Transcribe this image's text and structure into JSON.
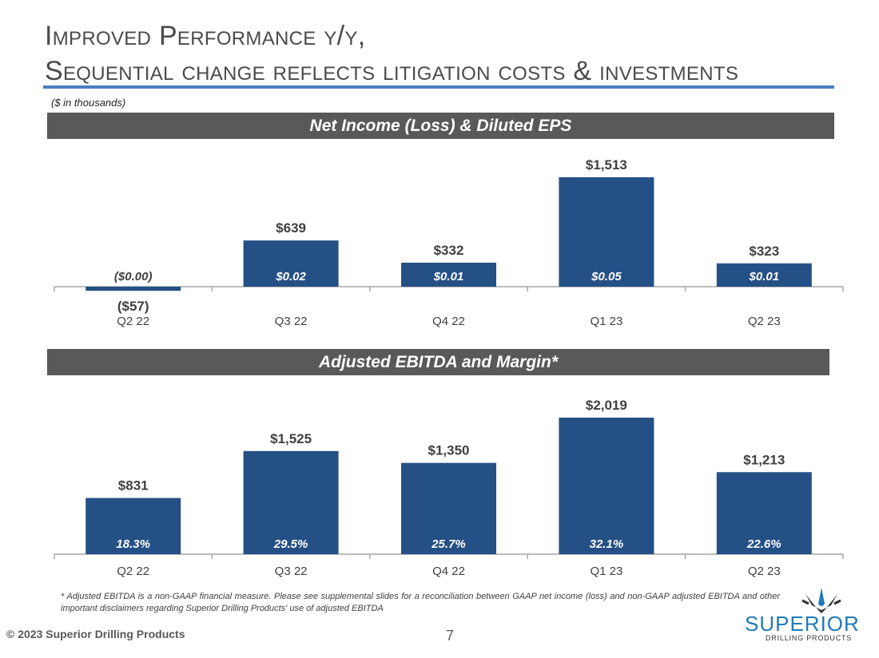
{
  "header": {
    "title_line1": "Improved Performance y/y,",
    "title_line2": "Sequential change reflects litigation costs & investments",
    "units_note": "($ in thousands)"
  },
  "colors": {
    "bar": "#255086",
    "band": "#595959",
    "rule": "#4a7fc0",
    "logo_blue": "#1f7ab8"
  },
  "chart_data": [
    {
      "type": "bar",
      "title": "Net Income (Loss) & Diluted EPS",
      "categories": [
        "Q2 22",
        "Q3 22",
        "Q4 22",
        "Q1 23",
        "Q2 23"
      ],
      "values": [
        -57,
        639,
        332,
        1513,
        323
      ],
      "value_labels": [
        "($57)",
        "$639",
        "$332",
        "$1,513",
        "$323"
      ],
      "secondary_labels": [
        "($0.00)",
        "$0.02",
        "$0.01",
        "$0.05",
        "$0.01"
      ],
      "secondary_name": "Diluted EPS",
      "xlabel": "",
      "ylabel": "",
      "grid": false,
      "legend": "none"
    },
    {
      "type": "bar",
      "title": "Adjusted EBITDA and Margin*",
      "categories": [
        "Q2 22",
        "Q3 22",
        "Q4 22",
        "Q1 23",
        "Q2 23"
      ],
      "values": [
        831,
        1525,
        1350,
        2019,
        1213
      ],
      "value_labels": [
        "$831",
        "$1,525",
        "$1,350",
        "$2,019",
        "$1,213"
      ],
      "secondary_labels": [
        "18.3%",
        "29.5%",
        "25.7%",
        "32.1%",
        "22.6%"
      ],
      "secondary_name": "Margin",
      "xlabel": "",
      "ylabel": "",
      "grid": false,
      "legend": "none"
    }
  ],
  "footer": {
    "footnote": "* Adjusted EBITDA is a non-GAAP financial measure.  Please see supplemental slides for a reconciliation between GAAP net income (loss) and non-GAAP adjusted EBITDA and other important disclaimers regarding Superior Drilling Products' use of adjusted EBITDA",
    "copyright": "© 2023 Superior Drilling Products",
    "page_number": "7",
    "logo_word": "SUPERIOR",
    "logo_sub": "DRILLING PRODUCTS"
  }
}
